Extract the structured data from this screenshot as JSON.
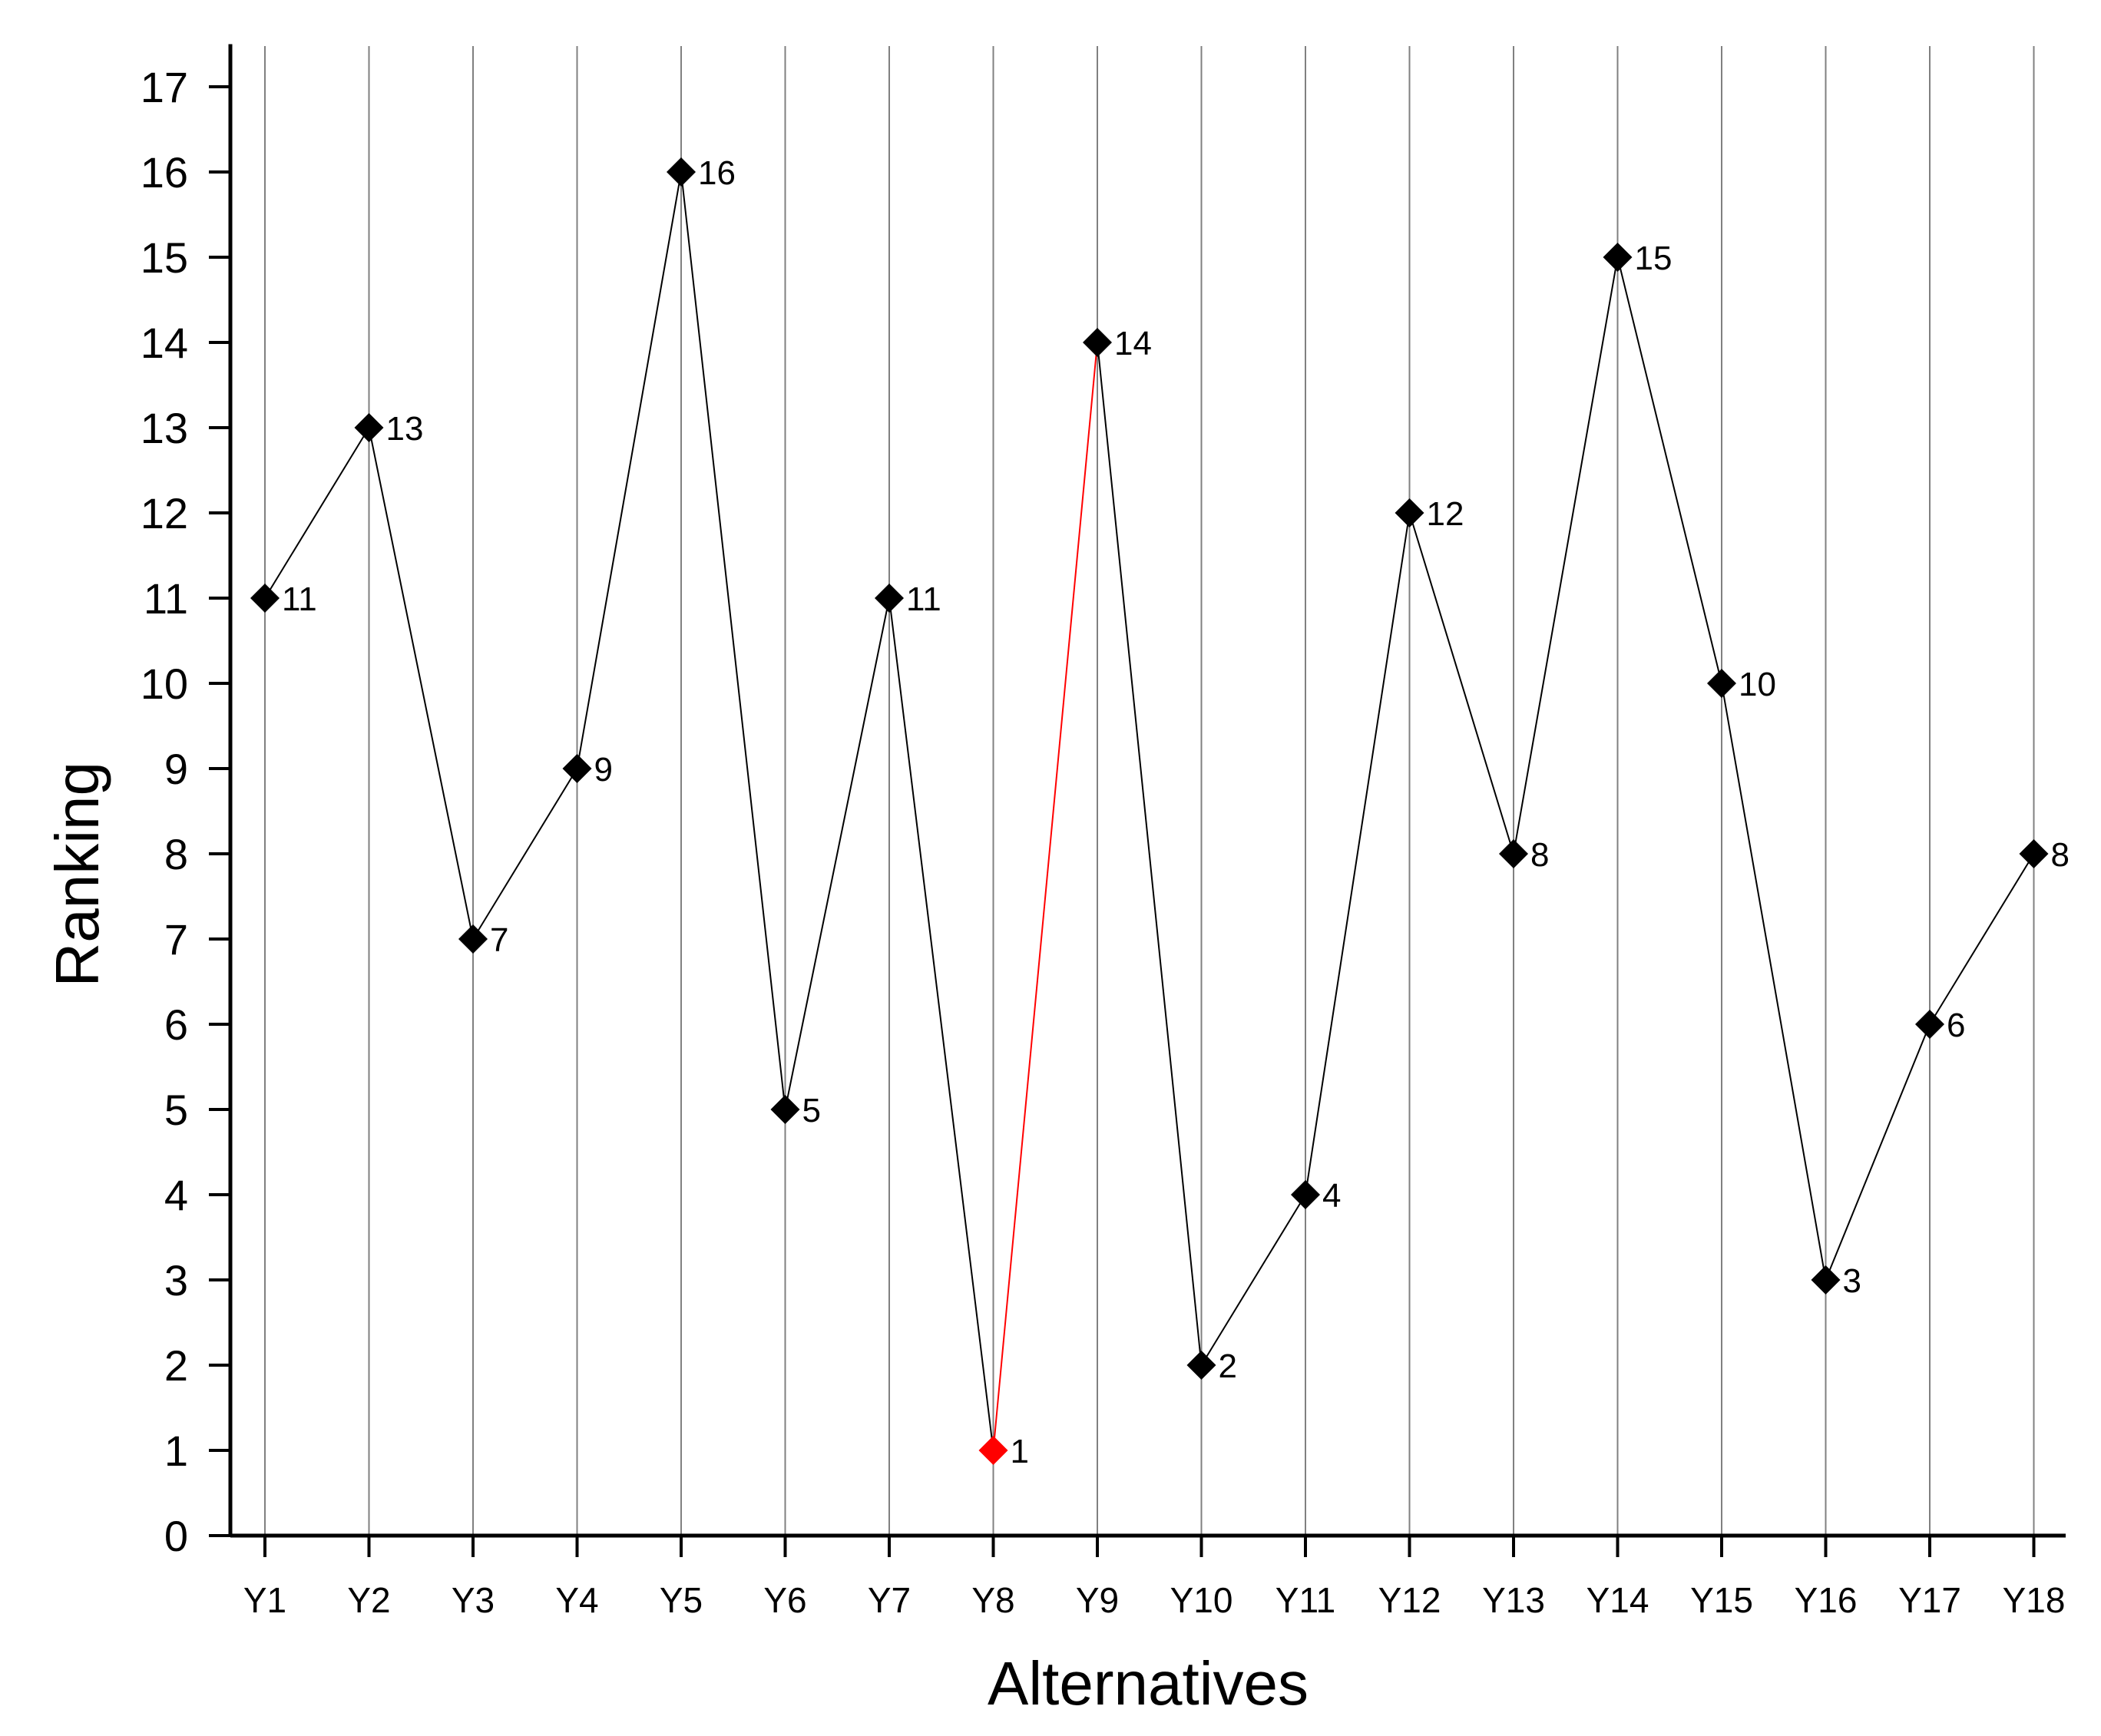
{
  "chart_data": {
    "type": "line",
    "title": "",
    "xlabel": "Alternatives",
    "ylabel": "Ranking",
    "ylim": [
      0,
      17.5
    ],
    "yticks": [
      "0",
      "1",
      "2",
      "3",
      "4",
      "5",
      "6",
      "7",
      "8",
      "9",
      "10",
      "11",
      "12",
      "13",
      "14",
      "15",
      "16",
      "17"
    ],
    "grid": "vertical",
    "categories": [
      "Y1",
      "Y2",
      "Y3",
      "Y4",
      "Y5",
      "Y6",
      "Y7",
      "Y8",
      "Y9",
      "Y10",
      "Y11",
      "Y12",
      "Y13",
      "Y14",
      "Y15",
      "Y16",
      "Y17",
      "Y18"
    ],
    "series": [
      {
        "name": "Ranking",
        "values": [
          11,
          13,
          7,
          9,
          16,
          5,
          11,
          1,
          14,
          2,
          4,
          12,
          8,
          15,
          10,
          3,
          6,
          8
        ],
        "data_labels": [
          "11",
          "13",
          "7",
          "9",
          "16",
          "5",
          "11",
          "1",
          "14",
          "2",
          "4",
          "12",
          "8",
          "15",
          "10",
          "3",
          "6",
          "8"
        ]
      }
    ],
    "highlight": {
      "category": "Y8",
      "segment_to": "Y9"
    },
    "colors": {
      "line": "#000000",
      "marker": "#000000",
      "highlight": "#ff0000",
      "grid": "#808080",
      "axis": "#000000"
    }
  }
}
